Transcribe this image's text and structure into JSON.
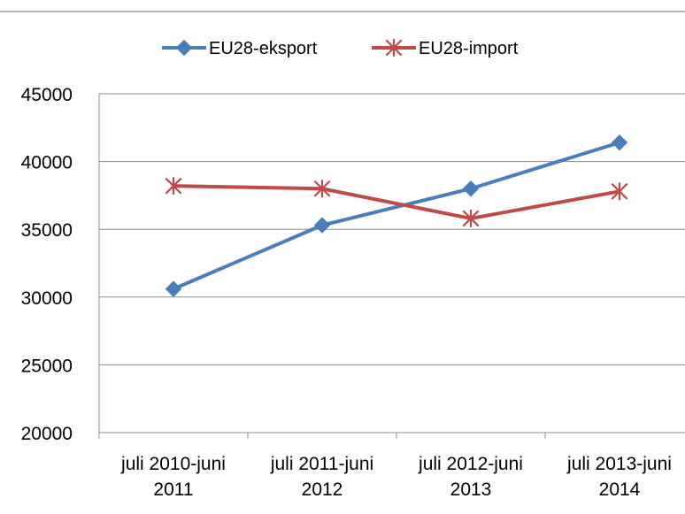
{
  "chart_data": {
    "type": "line",
    "categories": [
      [
        "juli 2010-juni",
        "2011"
      ],
      [
        "juli 2011-juni",
        "2012"
      ],
      [
        "juli 2012-juni",
        "2013"
      ],
      [
        "juli 2013-juni",
        "2014"
      ]
    ],
    "series": [
      {
        "name": "EU28-eksport",
        "values": [
          30600,
          35300,
          38000,
          41400
        ],
        "color": "#4a7ebb",
        "marker": "diamond"
      },
      {
        "name": "EU28-import",
        "values": [
          38200,
          38000,
          35800,
          37800
        ],
        "color": "#be4b48",
        "marker": "star"
      }
    ],
    "ylim": [
      20000,
      45000
    ],
    "yticks": [
      "45000",
      "40000",
      "35000",
      "30000",
      "25000",
      "20000"
    ],
    "grid": true,
    "legend_position": "top"
  }
}
